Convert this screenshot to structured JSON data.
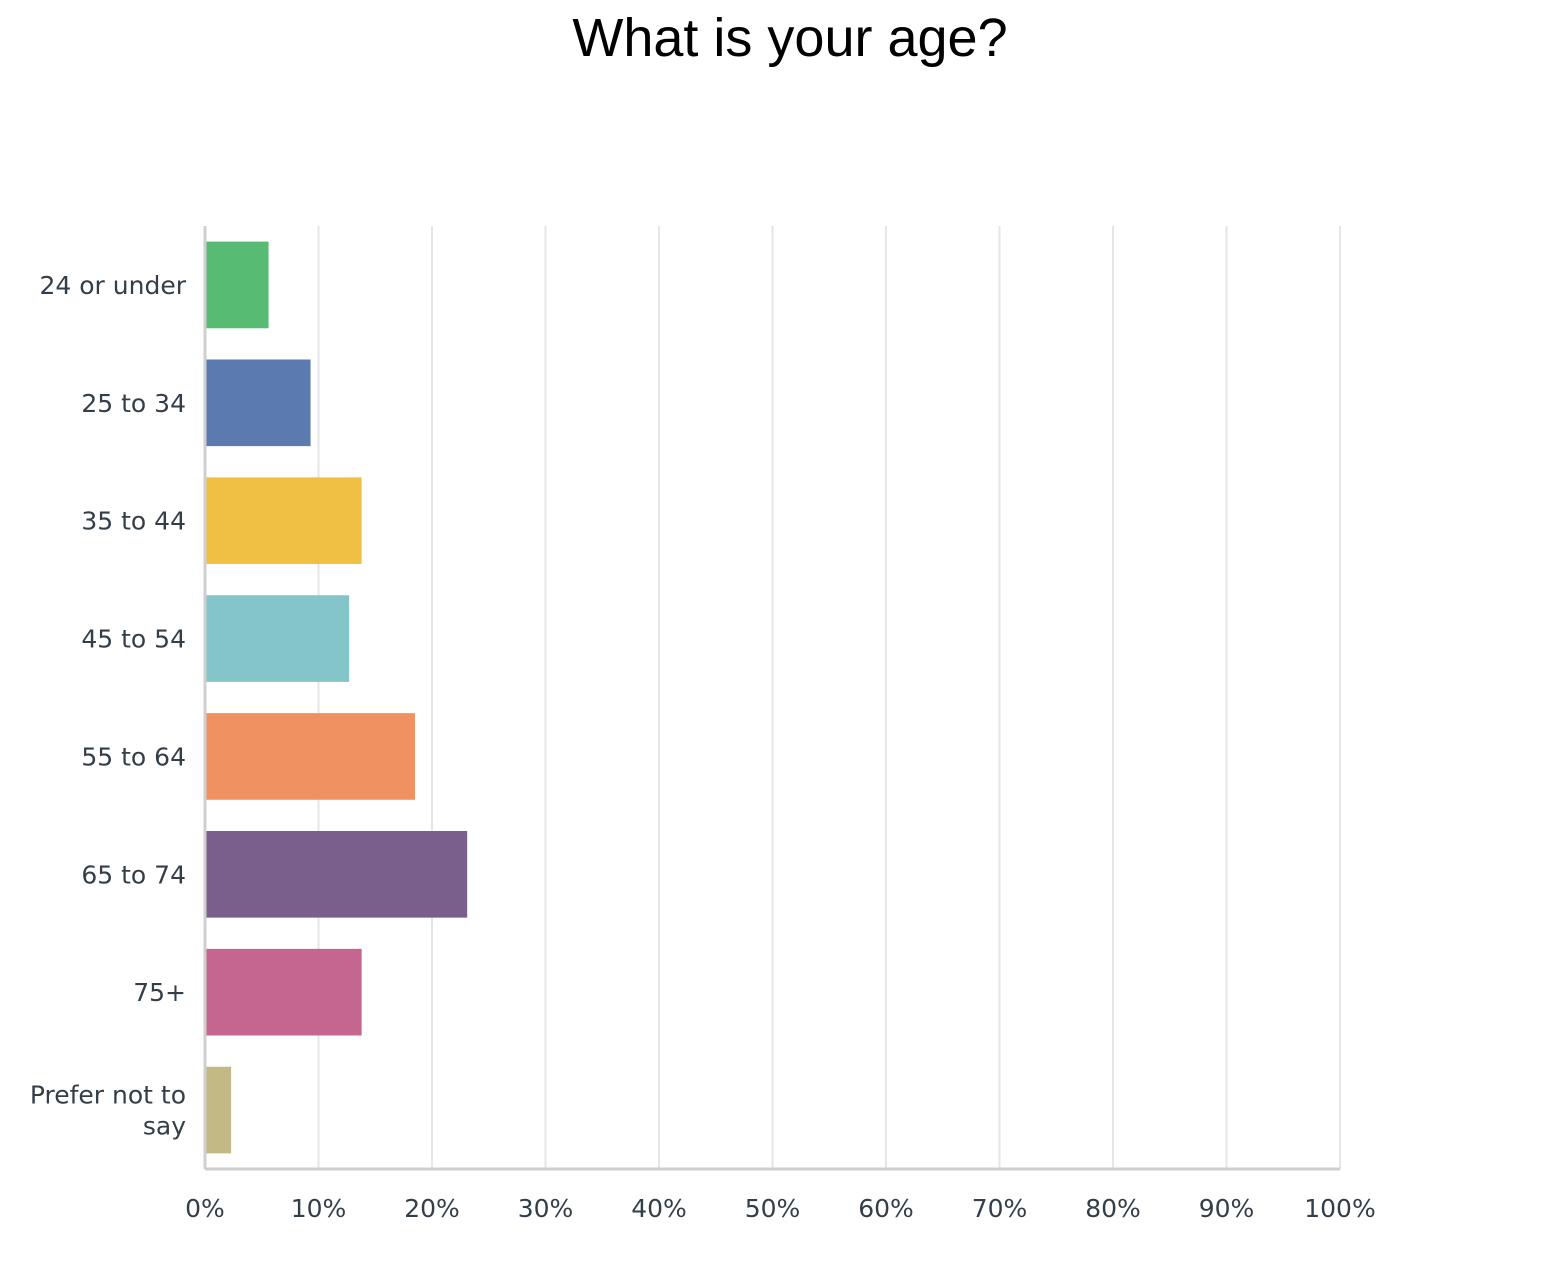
{
  "chart_data": {
    "type": "bar",
    "orientation": "horizontal",
    "title": "What is your age?",
    "categories": [
      "24 or under",
      "25 to 34",
      "35 to 44",
      "45 to 54",
      "55 to 64",
      "65 to 74",
      "75+",
      "Prefer not to say"
    ],
    "category_label_lines": [
      [
        "24 or under"
      ],
      [
        "25 to 34"
      ],
      [
        "35 to 44"
      ],
      [
        "45 to 54"
      ],
      [
        "55 to 64"
      ],
      [
        "65 to 74"
      ],
      [
        "75+"
      ],
      [
        "Prefer not to",
        "say"
      ]
    ],
    "values": [
      5.6,
      9.3,
      13.8,
      12.7,
      18.5,
      23.1,
      13.8,
      2.3
    ],
    "colors": [
      "#57bb74",
      "#5b7bb0",
      "#efc043",
      "#83c5c9",
      "#f0925f",
      "#7a5f8c",
      "#c4668f",
      "#c3b985"
    ],
    "xlim": [
      0,
      100
    ],
    "xticks": [
      "0%",
      "10%",
      "20%",
      "30%",
      "40%",
      "50%",
      "60%",
      "70%",
      "80%",
      "90%",
      "100%"
    ],
    "xlabel": "",
    "ylabel": "",
    "grid": true,
    "legend": "none"
  }
}
